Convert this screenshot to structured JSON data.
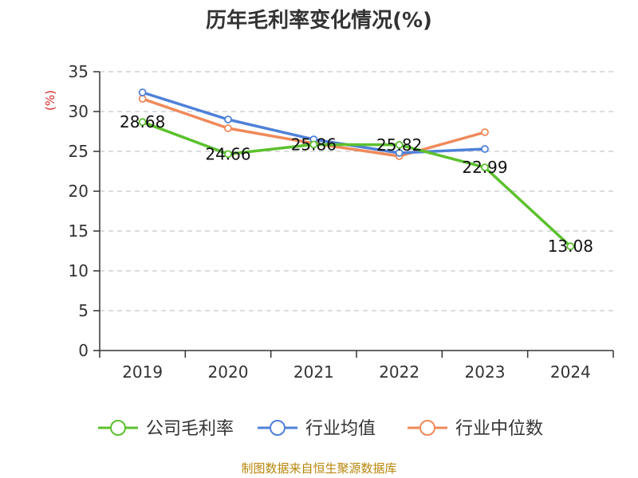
{
  "chart_data": {
    "type": "line",
    "title": "历年毛利率变化情况(%)",
    "ylabel": "(%)",
    "categories": [
      "2019",
      "2020",
      "2021",
      "2022",
      "2023",
      "2024"
    ],
    "ylim": [
      0,
      35
    ],
    "yticks": [
      "0",
      "5",
      "10",
      "15",
      "20",
      "25",
      "30",
      "35"
    ],
    "grid": true,
    "legend_position": "bottom",
    "series": [
      {
        "name": "公司毛利率",
        "color": "#5cc12e",
        "values": [
          28.68,
          24.66,
          25.86,
          25.82,
          22.99,
          13.08
        ],
        "labels": [
          "28.68",
          "24.66",
          "25.86",
          "25.82",
          "22.99",
          "13.08"
        ]
      },
      {
        "name": "行业均值",
        "color": "#4f81d9",
        "values": [
          32.4,
          29.0,
          26.5,
          24.8,
          25.3,
          null
        ]
      },
      {
        "name": "行业中位数",
        "color": "#f0895a",
        "values": [
          31.6,
          27.9,
          26.0,
          24.4,
          27.4,
          null
        ]
      }
    ],
    "source": "制图数据来自恒生聚源数据库"
  }
}
